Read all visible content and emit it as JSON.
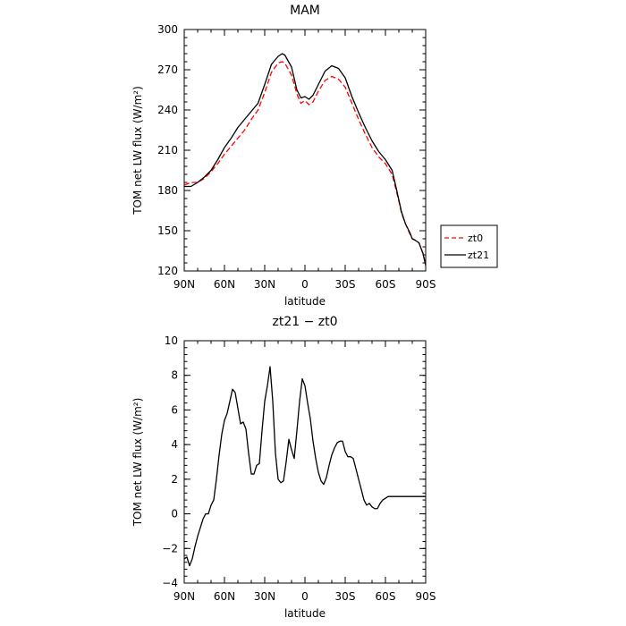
{
  "chart_data": [
    {
      "type": "line",
      "title": "MAM",
      "xlabel": "latitude",
      "ylabel": "TOM net LW flux (W/m²)",
      "xlim": [
        -90,
        90
      ],
      "ylim": [
        120,
        300
      ],
      "x_ticks": [
        -90,
        -60,
        -30,
        0,
        30,
        60,
        90
      ],
      "x_tick_labels": [
        "90N",
        "60N",
        "30N",
        "0",
        "30S",
        "60S",
        "90S"
      ],
      "y_ticks": [
        120,
        150,
        180,
        210,
        240,
        270,
        300
      ],
      "y_tick_labels": [
        "120",
        "150",
        "180",
        "210",
        "240",
        "270",
        "300"
      ],
      "legend": {
        "placement": "outside-right",
        "entries": [
          "zt0",
          "zt21"
        ]
      },
      "series": [
        {
          "name": "zt0",
          "color": "#ff0000",
          "style": "dashed",
          "x": [
            -90,
            -85,
            -80,
            -75,
            -70,
            -65,
            -60,
            -55,
            -50,
            -45,
            -40,
            -35,
            -30,
            -25,
            -20,
            -17,
            -15,
            -10,
            -6,
            -3,
            0,
            3,
            6,
            10,
            15,
            20,
            25,
            30,
            35,
            40,
            45,
            50,
            55,
            60,
            65,
            68,
            70,
            72,
            75,
            78,
            80,
            82,
            85,
            88,
            90
          ],
          "y": [
            184,
            186,
            186,
            189,
            194,
            200,
            207,
            213,
            219,
            225,
            233,
            240,
            253,
            268,
            275,
            276,
            275,
            266,
            252,
            245,
            247,
            244,
            246,
            254,
            262,
            265,
            263,
            257,
            245,
            233,
            222,
            212,
            205,
            200,
            192,
            180,
            172,
            163,
            155,
            148,
            144,
            143,
            141,
            133,
            125
          ]
        },
        {
          "name": "zt21",
          "color": "#000000",
          "style": "solid",
          "x": [
            -90,
            -85,
            -80,
            -75,
            -70,
            -65,
            -60,
            -55,
            -50,
            -45,
            -40,
            -35,
            -30,
            -25,
            -20,
            -17,
            -15,
            -10,
            -6,
            -3,
            0,
            3,
            6,
            10,
            15,
            20,
            25,
            30,
            35,
            40,
            45,
            50,
            55,
            60,
            65,
            68,
            70,
            72,
            75,
            78,
            80,
            82,
            85,
            88,
            90
          ],
          "y": [
            183,
            183,
            186,
            190,
            195,
            203,
            212,
            219,
            227,
            233,
            239,
            245,
            259,
            274,
            280,
            282,
            281,
            272,
            255,
            249,
            250,
            248,
            251,
            259,
            269,
            273,
            271,
            264,
            250,
            238,
            227,
            217,
            209,
            203,
            195,
            182,
            173,
            164,
            155,
            149,
            144,
            143,
            141,
            133,
            124
          ]
        }
      ]
    },
    {
      "type": "line",
      "title": "zt21 − zt0",
      "xlabel": "latitude",
      "ylabel": "TOM net LW flux (W/m²)",
      "xlim": [
        -90,
        90
      ],
      "ylim": [
        -4,
        10
      ],
      "x_ticks": [
        -90,
        -60,
        -30,
        0,
        30,
        60,
        90
      ],
      "x_tick_labels": [
        "90N",
        "60N",
        "30N",
        "0",
        "30S",
        "60S",
        "90S"
      ],
      "y_ticks": [
        -4,
        -2,
        0,
        2,
        4,
        6,
        8,
        10
      ],
      "y_tick_labels": [
        "−4",
        "−2",
        "0",
        "2",
        "4",
        "6",
        "8",
        "10"
      ],
      "series": [
        {
          "color": "#000000",
          "style": "solid",
          "x": [
            -90,
            -88,
            -86,
            -84,
            -82,
            -80,
            -78,
            -76,
            -74,
            -72,
            -70,
            -68,
            -66,
            -64,
            -62,
            -60,
            -58,
            -56,
            -54,
            -52,
            -50,
            -48,
            -46,
            -44,
            -42,
            -40,
            -38,
            -36,
            -34,
            -32,
            -30,
            -28,
            -26,
            -24,
            -22,
            -20,
            -18,
            -16,
            -14,
            -12,
            -10,
            -8,
            -6,
            -4,
            -2,
            0,
            2,
            4,
            6,
            8,
            10,
            12,
            14,
            16,
            18,
            20,
            22,
            24,
            26,
            28,
            30,
            32,
            34,
            36,
            38,
            40,
            42,
            44,
            46,
            48,
            50,
            52,
            54,
            56,
            58,
            60,
            62,
            64,
            66,
            68,
            70,
            72,
            74,
            76,
            78,
            80,
            82,
            84,
            86,
            88,
            90
          ],
          "y": [
            -2.6,
            -2.5,
            -3.0,
            -2.6,
            -1.9,
            -1.3,
            -0.8,
            -0.3,
            0.0,
            0.0,
            0.5,
            0.8,
            2.0,
            3.4,
            4.6,
            5.4,
            5.8,
            6.5,
            7.2,
            7.0,
            6.1,
            5.2,
            5.3,
            4.9,
            3.5,
            2.3,
            2.3,
            2.8,
            2.9,
            4.8,
            6.5,
            7.4,
            8.5,
            6.5,
            3.5,
            2.0,
            1.8,
            1.9,
            3.0,
            4.3,
            3.7,
            3.2,
            4.8,
            6.5,
            7.8,
            7.4,
            6.4,
            5.5,
            4.2,
            3.2,
            2.4,
            1.9,
            1.7,
            2.1,
            2.8,
            3.4,
            3.8,
            4.1,
            4.2,
            4.2,
            3.6,
            3.3,
            3.3,
            3.2,
            2.6,
            2.0,
            1.4,
            0.8,
            0.5,
            0.6,
            0.4,
            0.3,
            0.3,
            0.6,
            0.8,
            0.9,
            1.0,
            1.0,
            1.0,
            1.0,
            1.0,
            1.0,
            1.0,
            1.0,
            1.0,
            1.0,
            1.0,
            1.0,
            1.0,
            1.0,
            1.0
          ]
        }
      ]
    }
  ]
}
